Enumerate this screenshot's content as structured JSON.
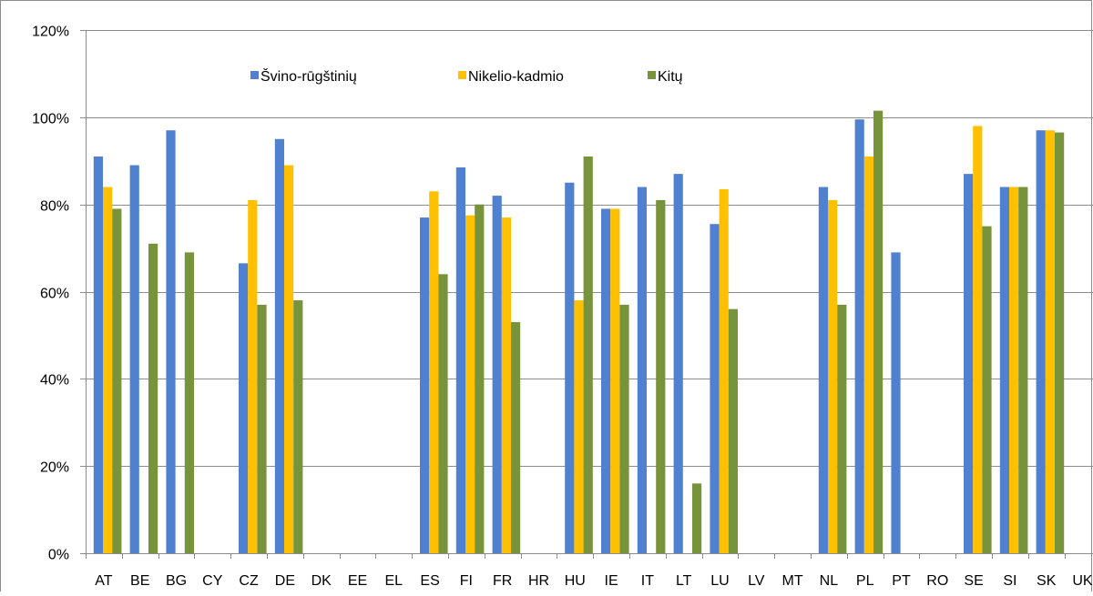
{
  "chart_data": {
    "type": "bar",
    "title": "",
    "xlabel": "",
    "ylabel": "",
    "ylim": [
      0,
      1.2
    ],
    "y_ticks": [
      0,
      0.2,
      0.4,
      0.6,
      0.8,
      1.0,
      1.2
    ],
    "y_tick_labels": [
      "0%",
      "20%",
      "40%",
      "60%",
      "80%",
      "100%",
      "120%"
    ],
    "grid": "horizontal",
    "legend_position": "top",
    "categories": [
      "AT",
      "BE",
      "BG",
      "CY",
      "CZ",
      "DE",
      "DK",
      "EE",
      "EL",
      "ES",
      "FI",
      "FR",
      "HR",
      "HU",
      "IE",
      "IT",
      "LT",
      "LU",
      "LV",
      "MT",
      "NL",
      "PL",
      "PT",
      "RO",
      "SE",
      "SI",
      "SK",
      "UK"
    ],
    "series": [
      {
        "name": "Švino-rūgštinių",
        "color": "#4f81d0",
        "values": [
          0.91,
          0.89,
          0.97,
          null,
          0.665,
          0.95,
          null,
          null,
          null,
          0.77,
          0.885,
          0.82,
          null,
          0.85,
          0.79,
          0.84,
          0.87,
          0.755,
          null,
          null,
          0.84,
          0.995,
          0.69,
          null,
          0.87,
          0.84,
          0.97,
          null
        ]
      },
      {
        "name": "Nikelio-kadmio",
        "color": "#ffc000",
        "values": [
          0.84,
          null,
          null,
          null,
          0.81,
          0.89,
          null,
          null,
          null,
          0.83,
          0.775,
          0.77,
          null,
          0.58,
          0.79,
          null,
          null,
          0.835,
          null,
          null,
          0.81,
          0.91,
          null,
          null,
          0.98,
          0.84,
          0.97,
          null
        ]
      },
      {
        "name": "Kitų",
        "color": "#77933c",
        "values": [
          0.79,
          0.71,
          0.69,
          null,
          0.57,
          0.58,
          null,
          null,
          null,
          0.64,
          0.8,
          0.53,
          null,
          0.91,
          0.57,
          0.81,
          0.16,
          0.56,
          null,
          null,
          0.57,
          1.015,
          null,
          null,
          0.75,
          0.84,
          0.965,
          null
        ]
      }
    ]
  }
}
